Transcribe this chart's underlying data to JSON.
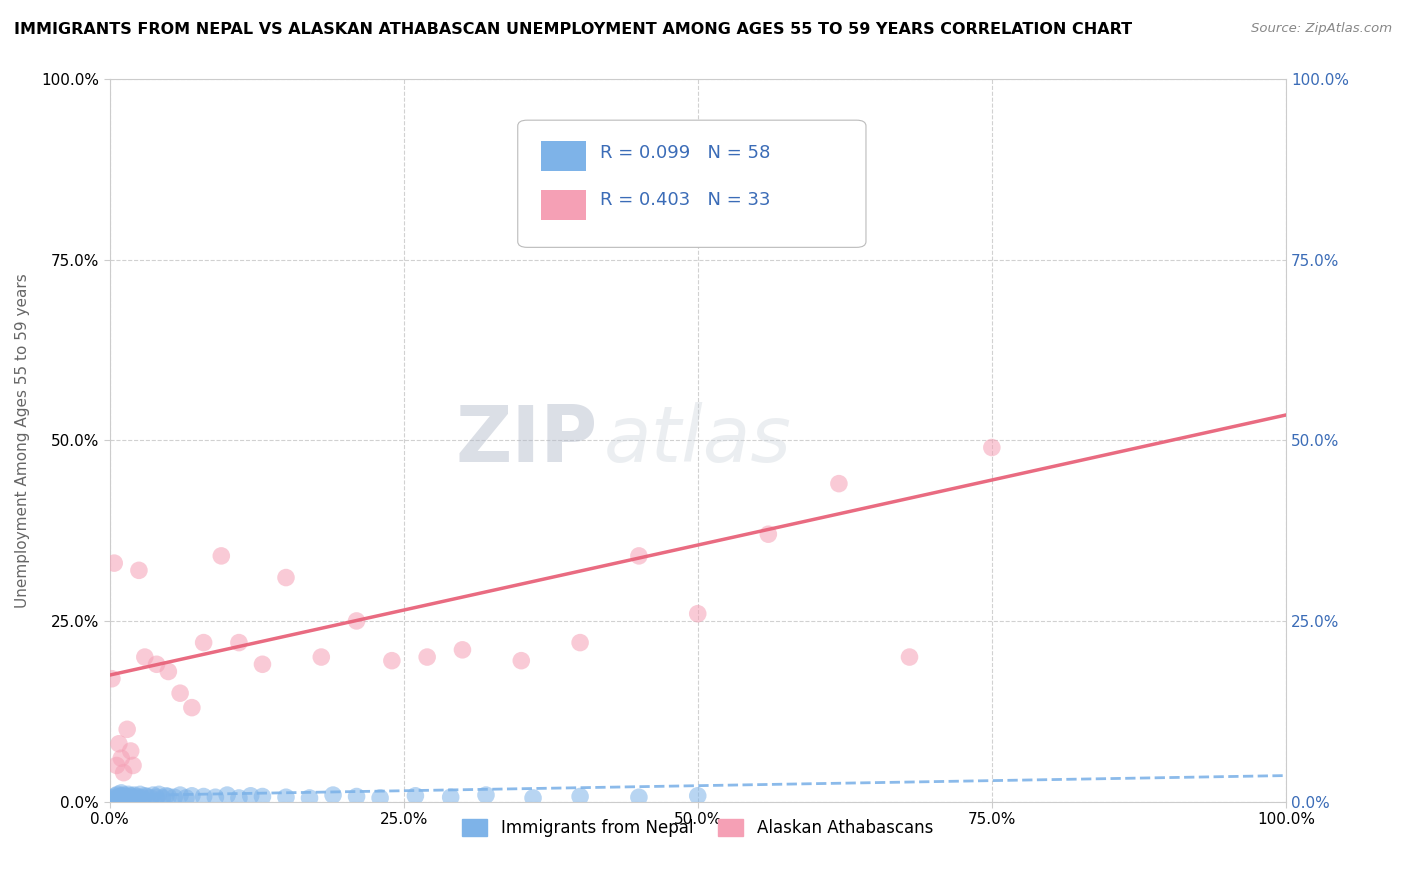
{
  "title": "IMMIGRANTS FROM NEPAL VS ALASKAN ATHABASCAN UNEMPLOYMENT AMONG AGES 55 TO 59 YEARS CORRELATION CHART",
  "source": "Source: ZipAtlas.com",
  "ylabel": "Unemployment Among Ages 55 to 59 years",
  "xlim": [
    0,
    1
  ],
  "ylim": [
    0,
    1
  ],
  "xticks": [
    0.0,
    0.25,
    0.5,
    0.75,
    1.0
  ],
  "yticks": [
    0.0,
    0.25,
    0.5,
    0.75,
    1.0
  ],
  "tick_labels": [
    "0.0%",
    "25.0%",
    "50.0%",
    "75.0%",
    "100.0%"
  ],
  "series1_label": "Immigrants from Nepal",
  "series1_R": "0.099",
  "series1_N": "58",
  "series1_color": "#7EB3E8",
  "series2_label": "Alaskan Athabascans",
  "series2_R": "0.403",
  "series2_N": "33",
  "series2_color": "#F5A0B5",
  "legend_R_N_color": "#3B6CB7",
  "watermark_zip": "ZIP",
  "watermark_atlas": "atlas",
  "background_color": "#FFFFFF",
  "grid_color": "#CCCCCC",
  "nepal_x": [
    0.002,
    0.003,
    0.004,
    0.005,
    0.005,
    0.006,
    0.007,
    0.007,
    0.008,
    0.009,
    0.01,
    0.01,
    0.011,
    0.012,
    0.013,
    0.014,
    0.015,
    0.016,
    0.017,
    0.018,
    0.02,
    0.021,
    0.022,
    0.023,
    0.025,
    0.026,
    0.028,
    0.03,
    0.032,
    0.035,
    0.037,
    0.04,
    0.042,
    0.045,
    0.048,
    0.05,
    0.055,
    0.06,
    0.065,
    0.07,
    0.08,
    0.09,
    0.1,
    0.11,
    0.12,
    0.13,
    0.15,
    0.17,
    0.19,
    0.21,
    0.23,
    0.26,
    0.29,
    0.32,
    0.36,
    0.4,
    0.45,
    0.5
  ],
  "nepal_y": [
    0.005,
    0.003,
    0.002,
    0.006,
    0.008,
    0.003,
    0.004,
    0.01,
    0.005,
    0.007,
    0.008,
    0.012,
    0.006,
    0.009,
    0.005,
    0.004,
    0.007,
    0.01,
    0.006,
    0.008,
    0.005,
    0.009,
    0.007,
    0.004,
    0.006,
    0.01,
    0.005,
    0.008,
    0.007,
    0.005,
    0.009,
    0.006,
    0.01,
    0.005,
    0.008,
    0.007,
    0.006,
    0.009,
    0.005,
    0.008,
    0.007,
    0.006,
    0.009,
    0.005,
    0.008,
    0.007,
    0.006,
    0.005,
    0.009,
    0.007,
    0.005,
    0.008,
    0.006,
    0.009,
    0.005,
    0.007,
    0.006,
    0.008
  ],
  "athabascan_x": [
    0.002,
    0.004,
    0.006,
    0.008,
    0.01,
    0.012,
    0.015,
    0.018,
    0.02,
    0.025,
    0.03,
    0.04,
    0.05,
    0.06,
    0.07,
    0.08,
    0.095,
    0.11,
    0.13,
    0.15,
    0.18,
    0.21,
    0.24,
    0.27,
    0.3,
    0.35,
    0.4,
    0.45,
    0.5,
    0.56,
    0.62,
    0.68,
    0.75
  ],
  "athabascan_y": [
    0.17,
    0.33,
    0.05,
    0.08,
    0.06,
    0.04,
    0.1,
    0.07,
    0.05,
    0.32,
    0.2,
    0.19,
    0.18,
    0.15,
    0.13,
    0.22,
    0.34,
    0.22,
    0.19,
    0.31,
    0.2,
    0.25,
    0.195,
    0.2,
    0.21,
    0.195,
    0.22,
    0.34,
    0.26,
    0.37,
    0.44,
    0.2,
    0.49
  ],
  "nepal_trendline": {
    "slope": 0.028,
    "intercept": 0.008
  },
  "athabascan_trendline": {
    "slope": 0.36,
    "intercept": 0.175
  }
}
